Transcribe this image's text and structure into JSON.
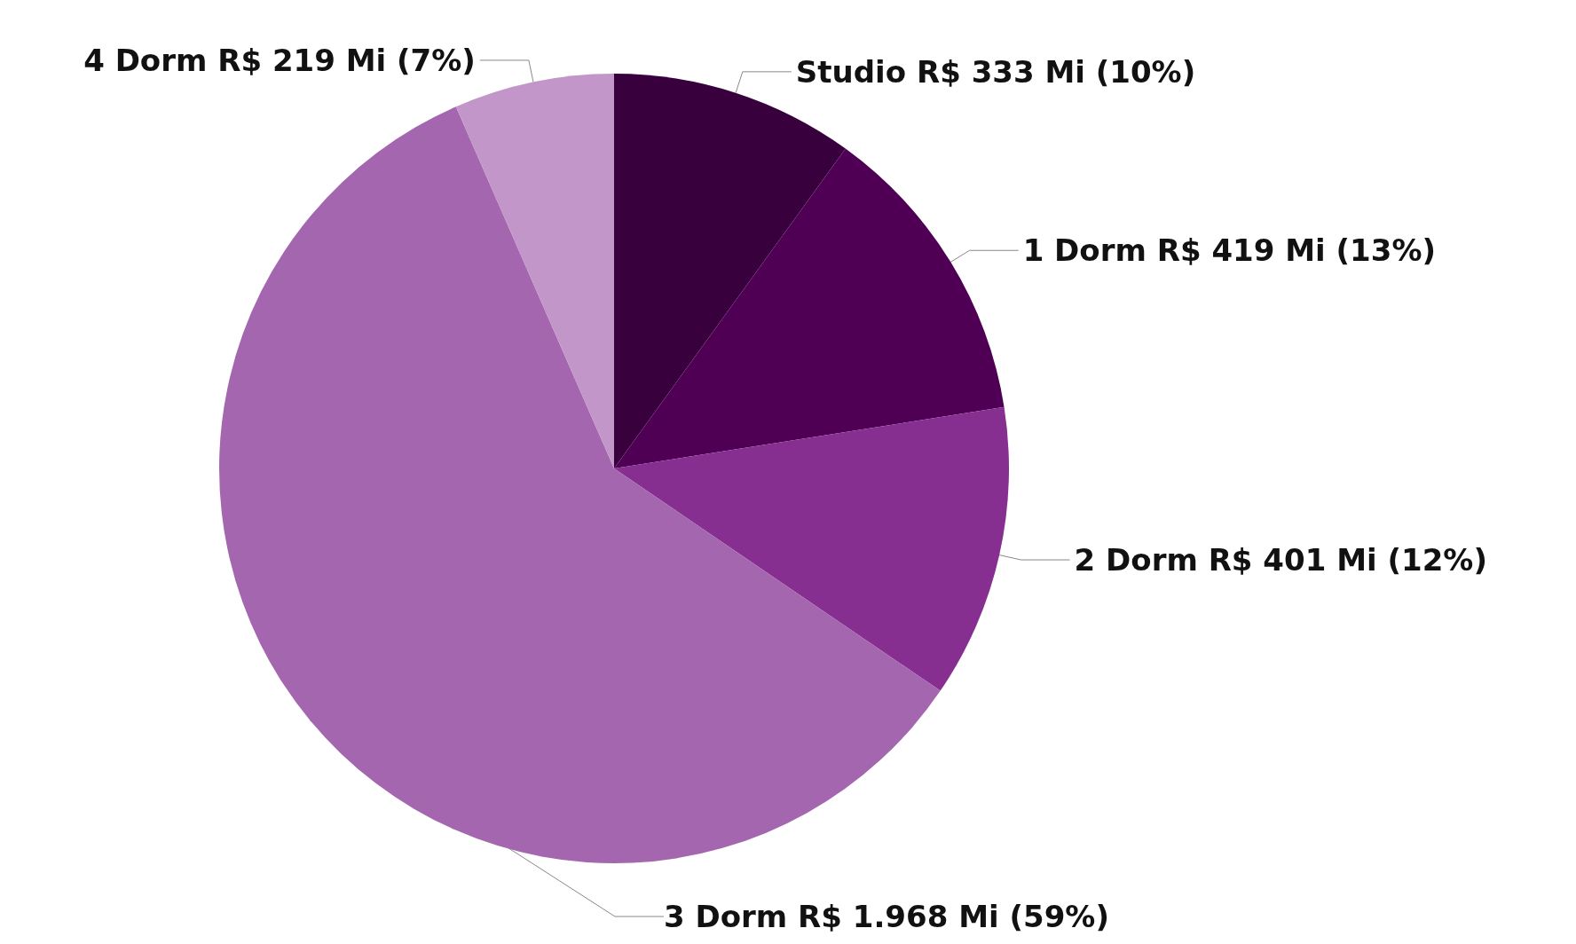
{
  "chart_data": {
    "type": "pie",
    "categories": [
      "Studio",
      "1 Dorm",
      "2 Dorm",
      "3 Dorm",
      "4 Dorm"
    ],
    "values": [
      333,
      419,
      401,
      1968,
      219
    ],
    "value_labels": [
      "R$ 333 Mi (10%)",
      "R$ 419 Mi (13%)",
      "R$ 401 Mi (12%)",
      "R$ 1.968 Mi (59%)",
      "R$ 219 Mi (7%)"
    ],
    "colors": [
      "#38003c",
      "#4f0055",
      "#862f90",
      "#a466ae",
      "#c396c9"
    ],
    "legend": false
  }
}
